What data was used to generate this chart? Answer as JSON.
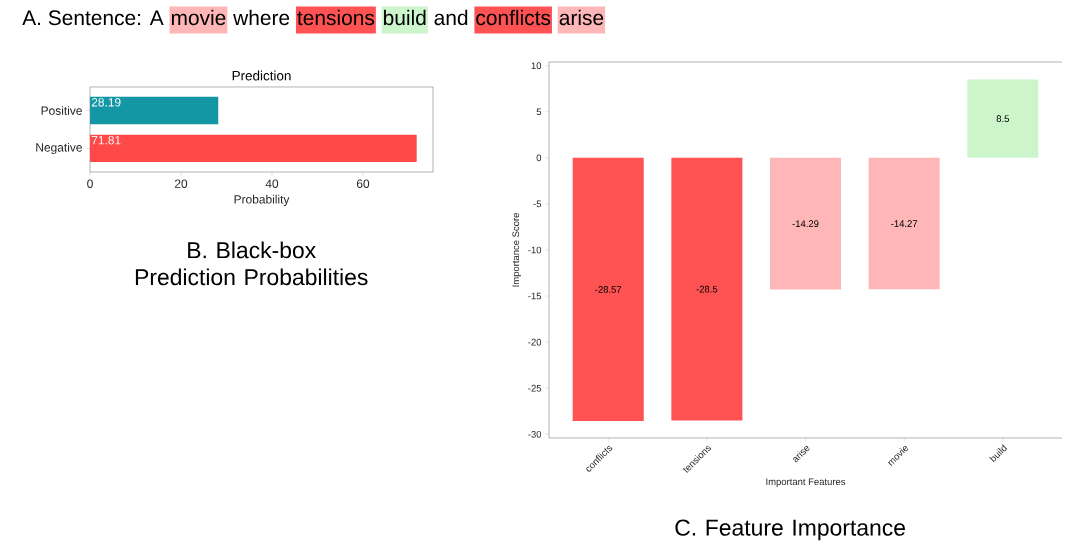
{
  "chart_data": [
    {
      "type": "other",
      "title": "A. Sentence:",
      "categories": [
        "A",
        "movie",
        "where",
        "tensions",
        "build",
        "and",
        "conflicts",
        "arise"
      ],
      "colors": [
        null,
        "#ffb6b6",
        null,
        "#ff5252",
        "#ccf5cc",
        null,
        "#ff5252",
        "#ffb6b6"
      ]
    },
    {
      "type": "bar",
      "orientation": "horizontal",
      "title": "Prediction",
      "categories": [
        "Positive",
        "Negative"
      ],
      "values": [
        28.19,
        71.81
      ],
      "colors": [
        "#1497a5",
        "#ff4848"
      ],
      "xlim": [
        0,
        75.4
      ],
      "xticks": [
        0,
        20,
        40,
        60
      ],
      "xlabel": "Probability",
      "data_labels": true,
      "annotations": [
        "B. Black-box Prediction Probabilities"
      ]
    },
    {
      "type": "bar",
      "categories": [
        "conflicts",
        "tensions",
        "arise",
        "movie",
        "build"
      ],
      "values": [
        -28.57,
        -28.5,
        -14.29,
        -14.27,
        8.5
      ],
      "colors": [
        "#ff5252",
        "#ff5252",
        "#ffb6b6",
        "#ffb6b6",
        "#ccf5cc"
      ],
      "ylim": [
        -30.4,
        10.4
      ],
      "yticks": [
        -30,
        -25,
        -20,
        -15,
        -10,
        -5,
        0,
        5,
        10
      ],
      "xlabel": "Important Features",
      "ylabel": "Importance Score",
      "data_labels": true,
      "annotations": [
        "C. Feature Importance"
      ]
    }
  ]
}
